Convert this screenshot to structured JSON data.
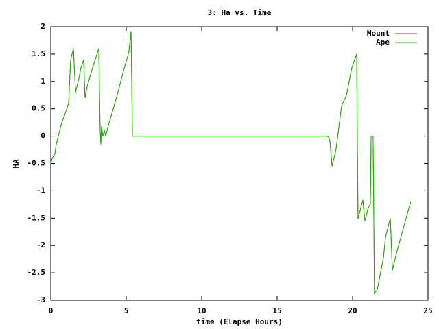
{
  "chart_data": {
    "type": "line",
    "title": "3: Ha vs. Time",
    "xlabel": "time (Elapse Hours)",
    "ylabel": "HA",
    "xlim": [
      0,
      25
    ],
    "xticks": [
      0,
      5,
      10,
      15,
      20,
      25
    ],
    "ylim": [
      -3,
      2
    ],
    "yticks": [
      -3,
      -2.5,
      -2,
      -1.5,
      -1,
      -0.5,
      0,
      0.5,
      1,
      1.5,
      2
    ],
    "grid": false,
    "legend": "top-right",
    "x": [
      0,
      0.1,
      0.27,
      0.36,
      0.45,
      0.73,
      1.0,
      1.18,
      1.32,
      1.5,
      1.64,
      1.86,
      2.0,
      2.18,
      2.27,
      2.4,
      2.77,
      3.18,
      3.27,
      3.32,
      3.36,
      3.45,
      3.55,
      3.64,
      3.82,
      4.14,
      4.45,
      4.82,
      5.09,
      5.18,
      5.32,
      5.41,
      18.36,
      18.5,
      18.64,
      18.9,
      19.27,
      19.6,
      19.95,
      20.27,
      20.36,
      20.6,
      20.68,
      20.82,
      21.05,
      21.18,
      21.23,
      21.36,
      21.45,
      21.64,
      22.05,
      22.18,
      22.5,
      22.64,
      22.9,
      23.27,
      23.6,
      23.86
    ],
    "series": [
      {
        "name": "Mount",
        "color": "#ff0000",
        "values": [
          -0.5,
          -0.4,
          -0.33,
          -0.15,
          -0.05,
          0.25,
          0.45,
          0.6,
          1.4,
          1.6,
          0.8,
          1.05,
          1.25,
          1.4,
          0.7,
          0.9,
          1.25,
          1.6,
          0.1,
          -0.15,
          0.18,
          0.0,
          0.1,
          0,
          0.2,
          0.5,
          0.8,
          1.2,
          1.45,
          1.55,
          1.92,
          0,
          0,
          -0.08,
          -0.55,
          -0.25,
          0.55,
          0.75,
          1.25,
          1.5,
          -1.52,
          -1.25,
          -1.17,
          -1.55,
          -1.3,
          -1.25,
          0,
          0,
          -2.88,
          -2.8,
          -2.22,
          -1.85,
          -1.5,
          -2.45,
          -2.15,
          -1.78,
          -1.45,
          -1.2
        ]
      },
      {
        "name": "Ape",
        "color": "#00c000",
        "values": [
          -0.5,
          -0.4,
          -0.33,
          -0.15,
          -0.05,
          0.25,
          0.45,
          0.6,
          1.4,
          1.6,
          0.8,
          1.05,
          1.25,
          1.4,
          0.7,
          0.9,
          1.25,
          1.6,
          0.1,
          -0.15,
          0.18,
          0.0,
          0.1,
          0,
          0.2,
          0.5,
          0.8,
          1.2,
          1.45,
          1.55,
          1.92,
          0,
          0,
          -0.08,
          -0.55,
          -0.25,
          0.55,
          0.75,
          1.25,
          1.5,
          -1.52,
          -1.25,
          -1.17,
          -1.55,
          -1.3,
          -1.25,
          0,
          0,
          -2.88,
          -2.8,
          -2.22,
          -1.85,
          -1.5,
          -2.45,
          -2.15,
          -1.78,
          -1.45,
          -1.2
        ]
      }
    ]
  }
}
